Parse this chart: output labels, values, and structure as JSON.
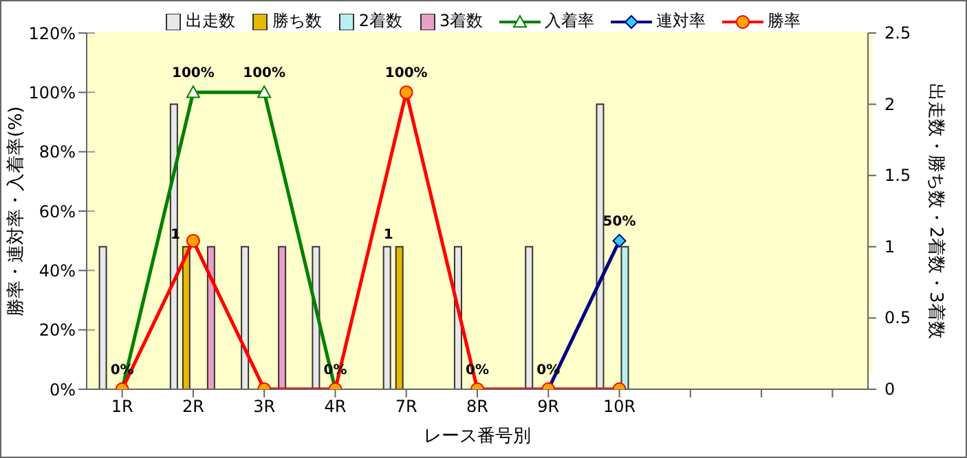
{
  "chart_data": {
    "type": "bar",
    "xlabel": "レース番号別",
    "ylabel": "勝率・連対率・入着率(%)",
    "y2label": "出走数・勝ち数・2着数・3着数",
    "categories": [
      "1R",
      "2R",
      "3R",
      "4R",
      "7R",
      "8R",
      "9R",
      "10R",
      null,
      null,
      null
    ],
    "series": [
      {
        "name": "出走数",
        "axis": "y2",
        "color": "#e8e8e8",
        "values": [
          1,
          2,
          1,
          1,
          1,
          1,
          1,
          2,
          null,
          null,
          null
        ]
      },
      {
        "name": "勝ち数",
        "axis": "y2",
        "color": "#e6b800",
        "values": [
          0,
          1,
          0,
          0,
          1,
          0,
          0,
          0,
          null,
          null,
          null
        ],
        "value_labels": [
          null,
          "1",
          null,
          null,
          "1",
          null,
          null,
          null,
          null,
          null,
          null
        ]
      },
      {
        "name": "2着数",
        "axis": "y2",
        "color": "#b8f0f0",
        "values": [
          0,
          0,
          0,
          0,
          0,
          0,
          0,
          1,
          null,
          null,
          null
        ]
      },
      {
        "name": "3着数",
        "axis": "y2",
        "color": "#e8a0c8",
        "values": [
          0,
          1,
          1,
          0,
          0,
          0,
          0,
          0,
          null,
          null,
          null
        ]
      },
      {
        "name": "入着率",
        "type": "line",
        "marker": "triangle",
        "color": "#008000",
        "values": [
          0,
          100,
          100,
          0,
          null,
          null,
          null,
          null,
          null,
          null,
          null
        ],
        "value_labels": [
          null,
          "100%",
          "100%",
          null,
          null,
          null,
          null,
          null,
          null,
          null,
          null
        ]
      },
      {
        "name": "連対率",
        "type": "line",
        "marker": "diamond",
        "color": "#000080",
        "values": [
          null,
          null,
          null,
          null,
          null,
          null,
          0,
          50,
          null,
          null,
          null
        ],
        "value_labels": [
          null,
          null,
          null,
          null,
          null,
          null,
          null,
          "50%",
          null,
          null,
          null
        ]
      },
      {
        "name": "勝率",
        "type": "line",
        "marker": "circle",
        "color": "#ff0000",
        "values": [
          0,
          50,
          0,
          0,
          100,
          0,
          0,
          0,
          null,
          null,
          null
        ],
        "value_labels": [
          "0%",
          null,
          null,
          "0%",
          "100%",
          "0%",
          "0%",
          null,
          null,
          null,
          null
        ]
      }
    ],
    "ylim": [
      0,
      120
    ],
    "yticks": [
      {
        "value": 0,
        "label": "0%"
      },
      {
        "value": 20,
        "label": "20%"
      },
      {
        "value": 40,
        "label": "40%"
      },
      {
        "value": 60,
        "label": "60%"
      },
      {
        "value": 80,
        "label": "80%"
      },
      {
        "value": 100,
        "label": "100%"
      },
      {
        "value": 120,
        "label": "120%"
      }
    ],
    "y2lim": [
      0,
      2.5
    ],
    "y2ticks": [
      0,
      0.5,
      1,
      1.5,
      2,
      2.5
    ],
    "grid": "y",
    "legend": "top"
  }
}
